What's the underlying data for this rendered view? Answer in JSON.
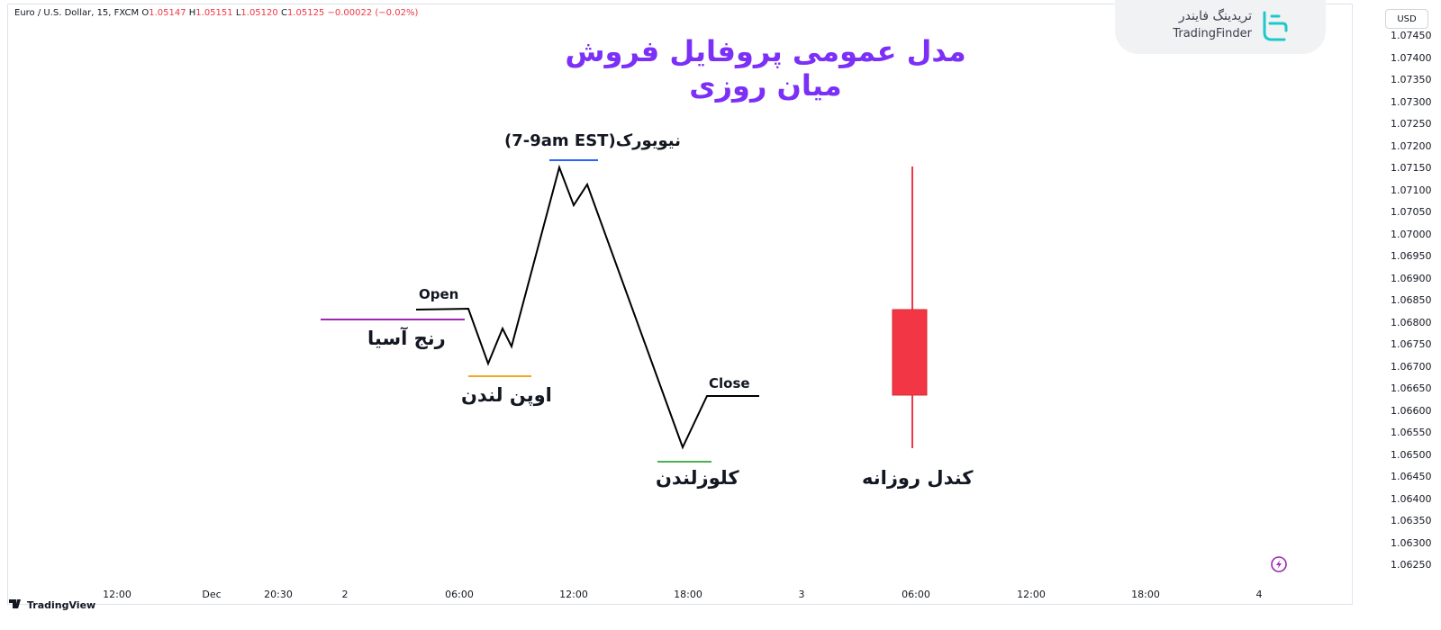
{
  "symbol_bar": {
    "symbol": "Euro / U.S. Dollar, 15, FXCM",
    "open_label": "O",
    "open_value": "1.05147",
    "high_label": "H",
    "high_value": "1.05151",
    "low_label": "L",
    "low_value": "1.05120",
    "close_label": "C",
    "close_value": "1.05125",
    "change": "−0.00022 (−0.02%)"
  },
  "title": "مدل عمومی پروفایل فروش میان روزی",
  "logo": {
    "fa": "تریدینگ فایندر",
    "en": "TradingFinder",
    "icon": "tradingfinder-logo-icon",
    "color": "#1fc8c8"
  },
  "price_scale": {
    "currency": "USD",
    "labels": [
      "1.07450",
      "1.07400",
      "1.07350",
      "1.07300",
      "1.07250",
      "1.07200",
      "1.07150",
      "1.07100",
      "1.07050",
      "1.07000",
      "1.06950",
      "1.06900",
      "1.06850",
      "1.06800",
      "1.06750",
      "1.06700",
      "1.06650",
      "1.06600",
      "1.06550",
      "1.06500",
      "1.06450",
      "1.06400",
      "1.06350",
      "1.06300",
      "1.06250"
    ]
  },
  "time_scale": {
    "labels": [
      "12:00",
      "Dec",
      "20:30",
      "2",
      "06:00",
      "12:00",
      "18:00",
      "3",
      "06:00",
      "12:00",
      "18:00",
      "4"
    ]
  },
  "annotations": {
    "asian_range": "رنج آسیا",
    "london_open": "اوپن لندن",
    "new_york": "نیویورک",
    "new_york_time": "(7-9am EST)",
    "london_close": "کلوزلندن",
    "daily_candle": "کندل روزانه",
    "open": "Open",
    "close": "Close"
  },
  "colors": {
    "asian_range_line": "#9c27b0",
    "london_open_line": "#f5a623",
    "new_york_line": "#2962ff",
    "london_close_line": "#4caf50",
    "candle": "#f23645",
    "title": "#7b2ff7",
    "price_path": "#000000"
  },
  "footer": {
    "brand": "TradingView",
    "icon": "tradingview-logo-icon"
  },
  "tools": {
    "icon": "lightning-icon"
  }
}
